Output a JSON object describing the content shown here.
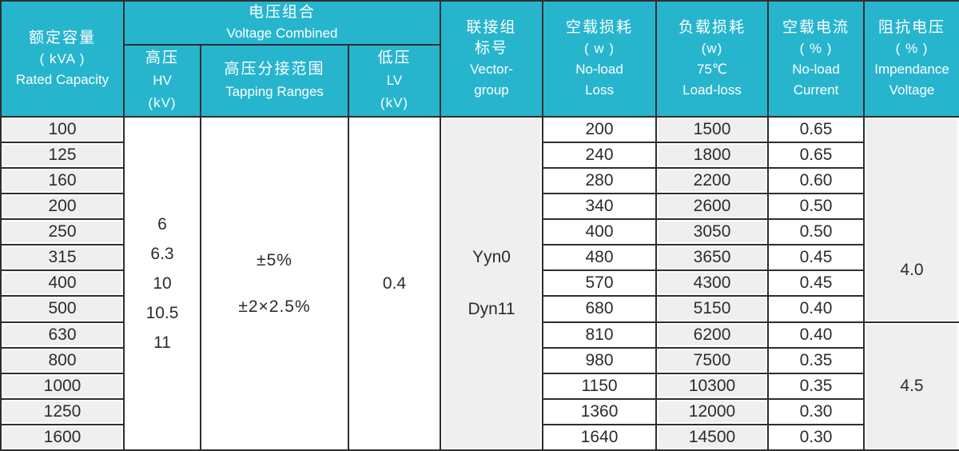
{
  "header": {
    "rated_capacity": {
      "zh": "额定容量",
      "unit": "( kVA )",
      "en": "Rated Capacity"
    },
    "voltage_combined": {
      "zh": "电压组合",
      "en": "Voltage Combined"
    },
    "hv": {
      "zh": "高压",
      "en": "HV",
      "unit": "(kV)"
    },
    "tapping": {
      "zh": "高压分接范围",
      "en": "Tapping Ranges"
    },
    "lv": {
      "zh": "低压",
      "en": "LV",
      "unit": "(kV)"
    },
    "vector_group": {
      "zh1": "联接组",
      "zh2": "标号",
      "en1": "Vector-",
      "en2": "group"
    },
    "no_load_loss": {
      "zh": "空载损耗",
      "unit": "( w )",
      "en1": "No-load",
      "en2": "Loss"
    },
    "load_loss": {
      "zh": "负载损耗",
      "unit": "(w)",
      "temp": "75℃",
      "en": "Load-loss"
    },
    "no_load_current": {
      "zh": "空载电流",
      "unit": "( % )",
      "en1": "No-load",
      "en2": "Current"
    },
    "impedance_voltage": {
      "zh": "阻抗电压",
      "unit": "( % )",
      "en1": "Impendance",
      "en2": "Voltage"
    }
  },
  "merged": {
    "hv_values": [
      "6",
      "6.3",
      "10",
      "10.5",
      "11"
    ],
    "tapping_values": [
      "±5%",
      "±2×2.5%"
    ],
    "lv_value": "0.4",
    "vector_values": [
      "Yyn0",
      "Dyn11"
    ],
    "impedance_groups": [
      {
        "value": "4.0",
        "row_span": 8
      },
      {
        "value": "4.5",
        "row_span": 5
      }
    ]
  },
  "rows": [
    {
      "capacity": "100",
      "no_load_loss": "200",
      "load_loss": "1500",
      "no_load_current": "0.65"
    },
    {
      "capacity": "125",
      "no_load_loss": "240",
      "load_loss": "1800",
      "no_load_current": "0.65"
    },
    {
      "capacity": "160",
      "no_load_loss": "280",
      "load_loss": "2200",
      "no_load_current": "0.60"
    },
    {
      "capacity": "200",
      "no_load_loss": "340",
      "load_loss": "2600",
      "no_load_current": "0.50"
    },
    {
      "capacity": "250",
      "no_load_loss": "400",
      "load_loss": "3050",
      "no_load_current": "0.50"
    },
    {
      "capacity": "315",
      "no_load_loss": "480",
      "load_loss": "3650",
      "no_load_current": "0.45"
    },
    {
      "capacity": "400",
      "no_load_loss": "570",
      "load_loss": "4300",
      "no_load_current": "0.45"
    },
    {
      "capacity": "500",
      "no_load_loss": "680",
      "load_loss": "5150",
      "no_load_current": "0.40"
    },
    {
      "capacity": "630",
      "no_load_loss": "810",
      "load_loss": "6200",
      "no_load_current": "0.40"
    },
    {
      "capacity": "800",
      "no_load_loss": "980",
      "load_loss": "7500",
      "no_load_current": "0.35"
    },
    {
      "capacity": "1000",
      "no_load_loss": "1150",
      "load_loss": "10300",
      "no_load_current": "0.35"
    },
    {
      "capacity": "1250",
      "no_load_loss": "1360",
      "load_loss": "12000",
      "no_load_current": "0.30"
    },
    {
      "capacity": "1600",
      "no_load_loss": "1640",
      "load_loss": "14500",
      "no_load_current": "0.30"
    }
  ],
  "colors": {
    "header_bg": "#27b5ce",
    "header_text": "#ffffff",
    "border": "#2e2e2e",
    "cell_gray": "#efefef",
    "data_text": "#2c2c2c"
  }
}
